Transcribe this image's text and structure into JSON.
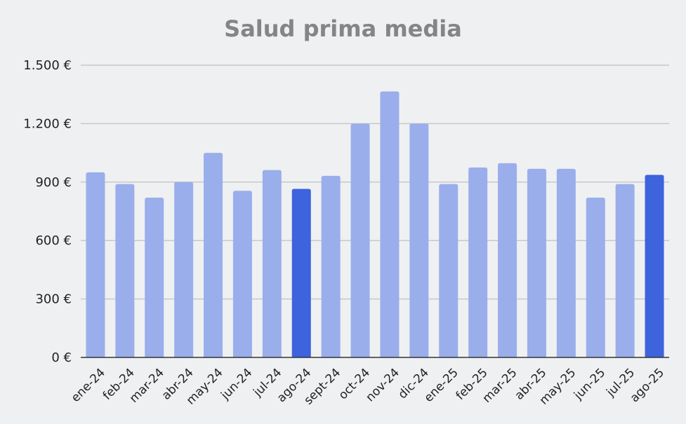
{
  "chart_data": {
    "type": "bar",
    "title": "Salud prima media",
    "xlabel": "",
    "ylabel": "",
    "categories": [
      "ene-24",
      "feb-24",
      "mar-24",
      "abr-24",
      "may-24",
      "jun-24",
      "jul-24",
      "ago-24",
      "sept-24",
      "oct-24",
      "nov-24",
      "dic-24",
      "ene-25",
      "feb-25",
      "mar-25",
      "abr-25",
      "may-25",
      "jun-25",
      "jul-25",
      "ago-25"
    ],
    "values": [
      950,
      890,
      820,
      900,
      1050,
      855,
      962,
      865,
      932,
      1200,
      1365,
      1200,
      890,
      975,
      997,
      968,
      968,
      820,
      890,
      937
    ],
    "highlighted": [
      "ago-24",
      "ago-25"
    ],
    "ylim": [
      0,
      1500
    ],
    "yticks": [
      0,
      300,
      600,
      900,
      1200,
      1500
    ],
    "ytick_labels": [
      "0 €",
      "300 €",
      "600 €",
      "900 €",
      "1.200 €",
      "1.500 €"
    ],
    "grid": true,
    "legend": "none",
    "colors": {
      "bar": "#9aaeec",
      "highlight": "#3d63dd",
      "grid": "#c8c8c8",
      "axis": "#333333",
      "title": "#858585",
      "background": "#eff0f2"
    }
  }
}
